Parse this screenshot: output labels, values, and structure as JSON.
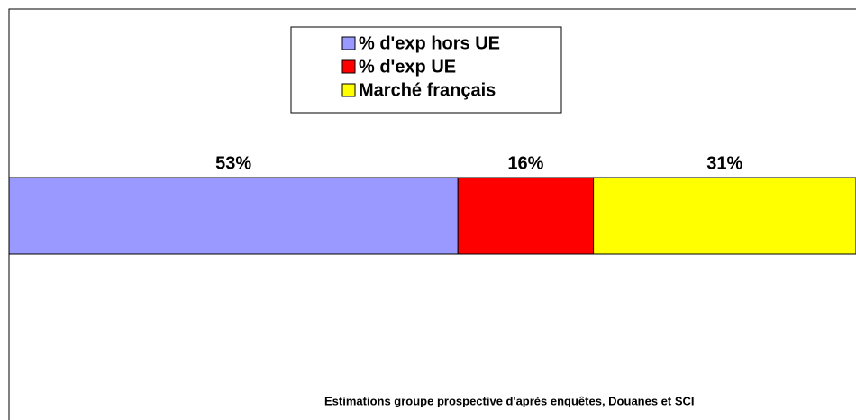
{
  "chart_data": {
    "type": "stacked-bar-horizontal",
    "series": [
      {
        "name": "% d'exp hors UE",
        "color": "#9999ff",
        "values": [
          53
        ],
        "value_labels": [
          "53%"
        ]
      },
      {
        "name": "% d'exp UE",
        "color": "#ff0000",
        "values": [
          16
        ],
        "value_labels": [
          "16%"
        ]
      },
      {
        "name": "Marché français",
        "color": "#ffff00",
        "values": [
          31
        ],
        "value_labels": [
          "31%"
        ]
      }
    ],
    "xlim": [
      0,
      100
    ],
    "legend": "top",
    "source": "Estimations groupe prospective d'après enquêtes, Douanes et SCI"
  }
}
